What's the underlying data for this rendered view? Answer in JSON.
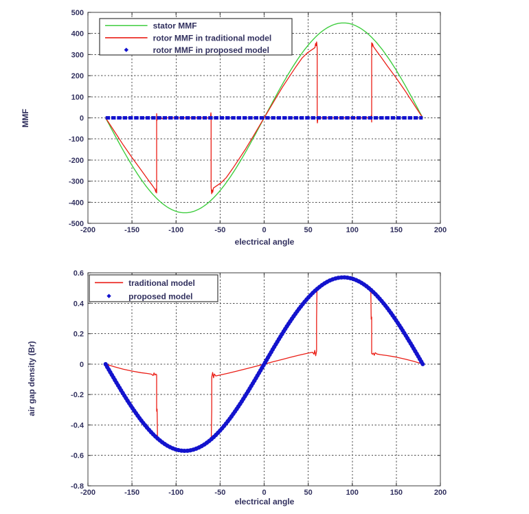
{
  "page": {
    "background": "#ffffff"
  },
  "colors": {
    "stator_green": "#3ecd3e",
    "rotor_red": "#ea1d15",
    "proposed_blue": "#1313cd",
    "grid": "#4d4d4d",
    "axis_box": "#3c3c3c",
    "text": "#31305e"
  },
  "chart_data": [
    {
      "id": "mmf",
      "type": "line",
      "title": "",
      "xlabel": "electrical angle",
      "ylabel": "MMF",
      "xlim": [
        -200,
        200
      ],
      "ylim": [
        -500,
        500
      ],
      "grid": true,
      "xticks": [
        -200,
        -150,
        -100,
        -50,
        0,
        50,
        100,
        150,
        200
      ],
      "xtick_labels": [
        "-200",
        "-150",
        "-100",
        "-50",
        "0",
        "50",
        "100",
        "150",
        "200"
      ],
      "yticks": [
        -500,
        -400,
        -300,
        -200,
        -100,
        0,
        100,
        200,
        300,
        400,
        500
      ],
      "ytick_labels": [
        "-500",
        "-400",
        "-300",
        "-200",
        "-100",
        "0",
        "100",
        "200",
        "300",
        "400",
        "500"
      ],
      "legend_position": "top-left",
      "series": [
        {
          "name": "stator MMF",
          "color": "#3ecd3e",
          "width": 1.4,
          "legend_marker": "line",
          "gen": "sine",
          "amplitude": 450,
          "x_range": [
            -180,
            180
          ]
        },
        {
          "name": "rotor MMF in traditional model",
          "color": "#ea1d15",
          "width": 1.3,
          "legend_marker": "line",
          "points": [
            [
              -180,
              0
            ],
            [
              -170,
              -64
            ],
            [
              -160,
              -128
            ],
            [
              -150,
              -188
            ],
            [
              -140,
              -245
            ],
            [
              -132,
              -292
            ],
            [
              -127,
              -320
            ],
            [
              -124,
              -338
            ],
            [
              -123,
              -352
            ],
            [
              -122.4,
              -336
            ],
            [
              -122,
              -356
            ],
            [
              -122,
              20
            ],
            [
              -121.6,
              -12
            ],
            [
              -121,
              6
            ],
            [
              -120,
              -6
            ],
            [
              -118,
              2
            ],
            [
              -115,
              -5
            ],
            [
              -113,
              0
            ],
            [
              -64,
              0
            ],
            [
              -62,
              -6
            ],
            [
              -61,
              2
            ],
            [
              -60.4,
              24
            ],
            [
              -60.2,
              12
            ],
            [
              -60.2,
              -330
            ],
            [
              -59.6,
              -360
            ],
            [
              -59,
              -342
            ],
            [
              -58.4,
              -353
            ],
            [
              -57.6,
              -333
            ],
            [
              -55,
              -325
            ],
            [
              -49,
              -308
            ],
            [
              -43,
              -283
            ],
            [
              -36,
              -242
            ],
            [
              -29,
              -198
            ],
            [
              -21,
              -147
            ],
            [
              -13,
              -92
            ],
            [
              -6,
              -42
            ],
            [
              0,
              0
            ],
            [
              6,
              42
            ],
            [
              13,
              92
            ],
            [
              21,
              147
            ],
            [
              29,
              198
            ],
            [
              36,
              242
            ],
            [
              43,
              283
            ],
            [
              49,
              308
            ],
            [
              55,
              325
            ],
            [
              57.6,
              333
            ],
            [
              58.4,
              353
            ],
            [
              59,
              342
            ],
            [
              59.6,
              360
            ],
            [
              60.2,
              330
            ],
            [
              60.2,
              -12
            ],
            [
              60.4,
              -24
            ],
            [
              61,
              -2
            ],
            [
              62,
              6
            ],
            [
              64,
              0
            ],
            [
              113,
              0
            ],
            [
              115,
              5
            ],
            [
              118,
              -2
            ],
            [
              120,
              6
            ],
            [
              121,
              -6
            ],
            [
              121.6,
              12
            ],
            [
              122,
              -20
            ],
            [
              122,
              356
            ],
            [
              122.4,
              336
            ],
            [
              123,
              352
            ],
            [
              124,
              338
            ],
            [
              127,
              320
            ],
            [
              132,
              292
            ],
            [
              140,
              245
            ],
            [
              150,
              188
            ],
            [
              160,
              128
            ],
            [
              170,
              64
            ],
            [
              180,
              0
            ]
          ]
        },
        {
          "name": "rotor MMF in proposed model",
          "color": "#1313cd",
          "width": 5,
          "legend_marker": "dot",
          "dash": "6.5 1.8",
          "linecap": "butt",
          "gen": "constant",
          "value": 0,
          "x_range": [
            -180,
            180
          ]
        }
      ]
    },
    {
      "id": "airgap",
      "type": "line",
      "title": "",
      "xlabel": "electrical angle",
      "ylabel": "air gap density (Br)",
      "xlim": [
        -200,
        200
      ],
      "ylim": [
        -0.8,
        0.6
      ],
      "grid": true,
      "xticks": [
        -200,
        -150,
        -100,
        -50,
        0,
        50,
        100,
        150,
        200
      ],
      "xtick_labels": [
        "-200",
        "-150",
        "-100",
        "-50",
        "0",
        "50",
        "100",
        "150",
        "200"
      ],
      "yticks": [
        -0.8,
        -0.6,
        -0.4,
        -0.2,
        0,
        0.2,
        0.4,
        0.6
      ],
      "ytick_labels": [
        "-0.8",
        "-0.6",
        "-0.4",
        "-0.2",
        "0",
        "0.2",
        "0.4",
        "0.6"
      ],
      "legend_position": "top-left",
      "series": [
        {
          "name": "traditional model",
          "color": "#ea1d15",
          "width": 1.3,
          "legend_marker": "line",
          "points": [
            [
              -180,
              0
            ],
            [
              -170,
              -0.018
            ],
            [
              -160,
              -0.033
            ],
            [
              -150,
              -0.046
            ],
            [
              -140,
              -0.056
            ],
            [
              -132,
              -0.062
            ],
            [
              -128,
              -0.066
            ],
            [
              -126,
              -0.075
            ],
            [
              -125,
              -0.058
            ],
            [
              -124,
              -0.072
            ],
            [
              -123,
              -0.065
            ],
            [
              -122,
              -0.07
            ],
            [
              -122,
              -0.31
            ],
            [
              -121.5,
              -0.295
            ],
            [
              -121,
              -0.5
            ],
            [
              -115,
              -0.523
            ],
            [
              -110,
              -0.536
            ],
            [
              -100,
              -0.561
            ],
            [
              -90,
              -0.57
            ],
            [
              -80,
              -0.561
            ],
            [
              -70,
              -0.536
            ],
            [
              -62,
              -0.503
            ],
            [
              -60,
              -0.494
            ],
            [
              -59.5,
              -0.3
            ],
            [
              -59.5,
              -0.085
            ],
            [
              -58.5,
              -0.055
            ],
            [
              -57.5,
              -0.09
            ],
            [
              -56.5,
              -0.065
            ],
            [
              -55,
              -0.078
            ],
            [
              -50,
              -0.072
            ],
            [
              -40,
              -0.059
            ],
            [
              -30,
              -0.045
            ],
            [
              -20,
              -0.03
            ],
            [
              -10,
              -0.015
            ],
            [
              0,
              0
            ],
            [
              10,
              0.015
            ],
            [
              20,
              0.03
            ],
            [
              30,
              0.045
            ],
            [
              40,
              0.059
            ],
            [
              50,
              0.072
            ],
            [
              55,
              0.078
            ],
            [
              56.5,
              0.065
            ],
            [
              57.5,
              0.09
            ],
            [
              58.5,
              0.055
            ],
            [
              59.5,
              0.085
            ],
            [
              59.5,
              0.3
            ],
            [
              60,
              0.5
            ],
            [
              62,
              0.503
            ],
            [
              70,
              0.536
            ],
            [
              80,
              0.561
            ],
            [
              90,
              0.57
            ],
            [
              100,
              0.561
            ],
            [
              110,
              0.536
            ],
            [
              115,
              0.523
            ],
            [
              121,
              0.5
            ],
            [
              121.5,
              0.295
            ],
            [
              122,
              0.31
            ],
            [
              122,
              0.07
            ],
            [
              123,
              0.065
            ],
            [
              124,
              0.072
            ],
            [
              125,
              0.058
            ],
            [
              126,
              0.075
            ],
            [
              128,
              0.066
            ],
            [
              132,
              0.062
            ],
            [
              140,
              0.056
            ],
            [
              150,
              0.046
            ],
            [
              160,
              0.033
            ],
            [
              170,
              0.018
            ],
            [
              180,
              0
            ]
          ]
        },
        {
          "name": "proposed model",
          "color": "#1313cd",
          "width": 6,
          "legend_marker": "dot",
          "dash": "1 3.4",
          "linecap": "round",
          "gen": "sine",
          "amplitude": 0.57,
          "x_range": [
            -180,
            180
          ]
        }
      ]
    }
  ],
  "labels": {
    "mmf_xlabel": "electrical angle",
    "mmf_ylabel": "MMF",
    "airgap_xlabel": "electrical angle",
    "airgap_ylabel": "air gap density (Br)"
  }
}
